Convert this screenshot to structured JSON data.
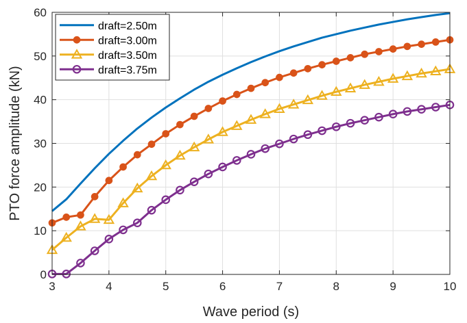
{
  "chart_data": {
    "type": "line",
    "title": "",
    "xlabel": "Wave period (s)",
    "ylabel": "PTO force amplitude (kN)",
    "xlim": [
      3,
      10
    ],
    "ylim": [
      0,
      60
    ],
    "xticks": [
      3,
      4,
      5,
      6,
      7,
      8,
      9,
      10
    ],
    "yticks": [
      0,
      10,
      20,
      30,
      40,
      50,
      60
    ],
    "grid": true,
    "legend_position": "top-left",
    "x": [
      3.0,
      3.25,
      3.5,
      3.75,
      4.0,
      4.25,
      4.5,
      4.75,
      5.0,
      5.25,
      5.5,
      5.75,
      6.0,
      6.25,
      6.5,
      6.75,
      7.0,
      7.25,
      7.5,
      7.75,
      8.0,
      8.25,
      8.5,
      8.75,
      9.0,
      9.25,
      9.5,
      9.75,
      10.0
    ],
    "series": [
      {
        "name": "draft=2.50m",
        "color": "#0072BD",
        "marker": "none",
        "values": [
          14.5,
          17.2,
          20.8,
          24.3,
          27.6,
          30.6,
          33.4,
          35.9,
          38.2,
          40.3,
          42.3,
          44.1,
          45.7,
          47.2,
          48.6,
          49.9,
          51.1,
          52.2,
          53.2,
          54.2,
          55.0,
          55.8,
          56.5,
          57.2,
          57.8,
          58.4,
          58.9,
          59.4,
          59.8
        ]
      },
      {
        "name": "draft=3.00m",
        "color": "#D95319",
        "marker": "circle-filled",
        "values": [
          11.8,
          13.1,
          13.6,
          17.8,
          21.5,
          24.6,
          27.4,
          29.8,
          32.2,
          34.3,
          36.2,
          38.0,
          39.7,
          41.2,
          42.6,
          43.9,
          45.1,
          46.1,
          47.1,
          48.0,
          48.8,
          49.6,
          50.4,
          51.0,
          51.6,
          52.2,
          52.7,
          53.2,
          53.7
        ]
      },
      {
        "name": "draft=3.50m",
        "color": "#EDB120",
        "marker": "triangle-open",
        "values": [
          5.6,
          8.4,
          11.0,
          12.7,
          12.5,
          16.3,
          19.7,
          22.5,
          25.0,
          27.2,
          29.1,
          30.9,
          32.6,
          34.0,
          35.4,
          36.7,
          37.9,
          38.9,
          39.9,
          40.9,
          41.8,
          42.6,
          43.4,
          44.1,
          44.8,
          45.4,
          46.0,
          46.5,
          47.0
        ]
      },
      {
        "name": "draft=3.75m",
        "color": "#7E2F8E",
        "marker": "circle-open",
        "values": [
          0.1,
          0.1,
          2.6,
          5.4,
          8.1,
          10.2,
          11.8,
          14.7,
          17.1,
          19.3,
          21.2,
          23.0,
          24.6,
          26.1,
          27.5,
          28.8,
          29.9,
          31.0,
          32.0,
          32.9,
          33.8,
          34.6,
          35.3,
          36.0,
          36.7,
          37.3,
          37.8,
          38.3,
          38.8
        ]
      }
    ]
  }
}
